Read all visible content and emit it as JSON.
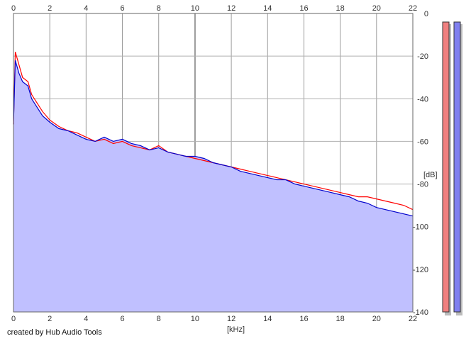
{
  "chart_data": {
    "type": "line",
    "xlabel": "[kHz]",
    "ylabel": "[dB]",
    "xlim": [
      0,
      22
    ],
    "ylim": [
      -140,
      0
    ],
    "x_ticks": [
      0,
      2,
      4,
      6,
      8,
      10,
      12,
      14,
      16,
      18,
      20,
      22
    ],
    "y_ticks": [
      0,
      -20,
      -40,
      -60,
      -80,
      -100,
      -120,
      -140
    ],
    "y_tick_labels": [
      "0",
      "-20",
      "-40",
      "-60",
      "-80",
      "-100",
      "-120",
      "-140"
    ],
    "grid": true,
    "series": [
      {
        "color": "#ff0000",
        "x": [
          0,
          0.1,
          0.3,
          0.5,
          0.8,
          1.0,
          1.3,
          1.6,
          2.0,
          2.5,
          3.0,
          3.5,
          4.0,
          4.5,
          5.0,
          5.5,
          6.0,
          6.5,
          7.0,
          7.5,
          8.0,
          8.5,
          9.0,
          9.5,
          10.0,
          10.5,
          11.0,
          11.5,
          12.0,
          12.5,
          13.0,
          13.5,
          14.0,
          14.5,
          15.0,
          15.5,
          16.0,
          16.5,
          17.0,
          17.5,
          18.0,
          18.5,
          19.0,
          19.5,
          20.0,
          20.5,
          21.0,
          21.5,
          22.0
        ],
        "values": [
          -52,
          -18,
          -24,
          -30,
          -32,
          -38,
          -42,
          -46,
          -50,
          -53,
          -55,
          -56,
          -58,
          -60,
          -59,
          -61,
          -60,
          -62,
          -63,
          -64,
          -62,
          -65,
          -66,
          -67,
          -68,
          -69,
          -70,
          -71,
          -72,
          -73,
          -74,
          -75,
          -76,
          -77,
          -78,
          -79,
          -80,
          -81,
          -82,
          -83,
          -84,
          -85,
          -86,
          -86,
          -87,
          -88,
          -89,
          -90,
          -92
        ]
      },
      {
        "color": "#0000cc",
        "x": [
          0,
          0.1,
          0.3,
          0.5,
          0.8,
          1.0,
          1.3,
          1.6,
          2.0,
          2.5,
          3.0,
          3.5,
          4.0,
          4.5,
          5.0,
          5.5,
          6.0,
          6.5,
          7.0,
          7.5,
          8.0,
          8.5,
          9.0,
          9.5,
          10.0,
          10.5,
          11.0,
          11.5,
          12.0,
          12.5,
          13.0,
          13.5,
          14.0,
          14.5,
          15.0,
          15.5,
          16.0,
          16.5,
          17.0,
          17.5,
          18.0,
          18.5,
          19.0,
          19.5,
          20.0,
          20.5,
          21.0,
          21.5,
          22.0
        ],
        "values": [
          -52,
          -22,
          -28,
          -32,
          -34,
          -40,
          -44,
          -48,
          -51,
          -54,
          -55,
          -57,
          -59,
          -60,
          -58,
          -60,
          -59,
          -61,
          -62,
          -64,
          -63,
          -65,
          -66,
          -67,
          -67,
          -68,
          -70,
          -71,
          -72,
          -74,
          -75,
          -76,
          -77,
          -78,
          -78,
          -80,
          -81,
          -82,
          -83,
          -84,
          -85,
          -86,
          -88,
          -89,
          -91,
          -92,
          -93,
          -94,
          -95
        ]
      }
    ],
    "fill_color": "#c0c0ff",
    "meter_colors": [
      "#f08080",
      "#8080f0"
    ],
    "meter_levels_db": [
      -4,
      -4
    ]
  },
  "footer": {
    "credit": "created by Hub Audio Tools"
  }
}
